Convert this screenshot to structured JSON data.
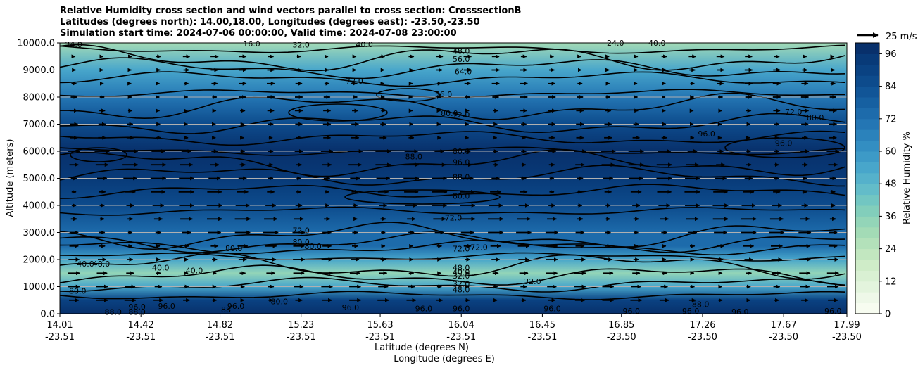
{
  "chart_data": {
    "type": "heatmap",
    "title": [
      "Relative Humidity cross section and wind vectors parallel to cross section: CrosssectionB",
      "Latitudes (degrees north): 14.00,18.00, Longitudes (degrees east): -23.50,-23.50",
      "Simulation start time: 2024-07-06 00:00:00, Valid time: 2024-07-08 23:00:00"
    ],
    "xlabel": [
      "Latitude (degrees N)",
      "Longitude (degrees E)"
    ],
    "ylabel": "Altitude (meters)",
    "x_ticks": [
      {
        "lat": "14.01",
        "lon": "-23.51"
      },
      {
        "lat": "14.42",
        "lon": "-23.51"
      },
      {
        "lat": "14.82",
        "lon": "-23.51"
      },
      {
        "lat": "15.23",
        "lon": "-23.51"
      },
      {
        "lat": "15.63",
        "lon": "-23.51"
      },
      {
        "lat": "16.04",
        "lon": "-23.51"
      },
      {
        "lat": "16.45",
        "lon": "-23.51"
      },
      {
        "lat": "16.85",
        "lon": "-23.50"
      },
      {
        "lat": "17.26",
        "lon": "-23.50"
      },
      {
        "lat": "17.67",
        "lon": "-23.50"
      },
      {
        "lat": "17.99",
        "lon": "-23.50"
      }
    ],
    "x_range": [
      14.01,
      17.99
    ],
    "y_ticks": [
      "0.0",
      "1000.0",
      "2000.0",
      "3000.0",
      "4000.0",
      "5000.0",
      "6000.0",
      "7000.0",
      "8000.0",
      "9000.0",
      "10000.0"
    ],
    "y_range": [
      0,
      10000
    ],
    "grid": "horizontal",
    "colorbar": {
      "label": "Relative Humidity %",
      "ticks": [
        "0",
        "12",
        "24",
        "36",
        "48",
        "60",
        "72",
        "84",
        "96"
      ],
      "levels": [
        0,
        4,
        8,
        12,
        16,
        20,
        24,
        28,
        32,
        36,
        40,
        44,
        48,
        52,
        56,
        60,
        64,
        68,
        72,
        76,
        80,
        84,
        88,
        92,
        96,
        100
      ],
      "colors": [
        "#f7fcf0",
        "#eef8e8",
        "#e3f4dd",
        "#d9f0d3",
        "#cfecc8",
        "#c2e7c0",
        "#b3e1ba",
        "#a3dbb6",
        "#93d5b8",
        "#82cebb",
        "#72c6c2",
        "#63bcc9",
        "#55b1cb",
        "#48a6cb",
        "#3d9ac7",
        "#338ec2",
        "#2b82bb",
        "#2476b4",
        "#1d6bab",
        "#1660a1",
        "#115597",
        "#0d4b8c",
        "#0a4282",
        "#083a78",
        "#08306b"
      ]
    },
    "rh_profile": [
      {
        "alt": 0,
        "rh": 96
      },
      {
        "alt": 500,
        "rh": 90
      },
      {
        "alt": 1000,
        "rh": 55
      },
      {
        "alt": 1500,
        "rh": 35
      },
      {
        "alt": 2000,
        "rh": 55
      },
      {
        "alt": 2500,
        "rh": 75
      },
      {
        "alt": 3000,
        "rh": 72
      },
      {
        "alt": 4000,
        "rh": 84
      },
      {
        "alt": 5000,
        "rh": 92
      },
      {
        "alt": 6000,
        "rh": 96
      },
      {
        "alt": 7000,
        "rh": 85
      },
      {
        "alt": 8000,
        "rh": 70
      },
      {
        "alt": 9000,
        "rh": 55
      },
      {
        "alt": 10000,
        "rh": 30
      }
    ],
    "wind_key": {
      "value": 25,
      "unit": "m/s",
      "label": "25 m/s"
    },
    "contour_labels": [
      {
        "text": "24.0",
        "lat": 14.08,
        "alt": 9950
      },
      {
        "text": "16.0",
        "lat": 14.98,
        "alt": 9970
      },
      {
        "text": "32.0",
        "lat": 15.23,
        "alt": 9930
      },
      {
        "text": "40.0",
        "lat": 15.55,
        "alt": 9950
      },
      {
        "text": "48.0",
        "lat": 16.04,
        "alt": 9700
      },
      {
        "text": "56.0",
        "lat": 16.04,
        "alt": 9400
      },
      {
        "text": "40.0",
        "lat": 17.03,
        "alt": 10000
      },
      {
        "text": "24.0",
        "lat": 16.82,
        "alt": 10000
      },
      {
        "text": "72.0",
        "lat": 15.5,
        "alt": 8600
      },
      {
        "text": "64.0",
        "lat": 16.05,
        "alt": 8950
      },
      {
        "text": "56.0",
        "lat": 15.95,
        "alt": 8100
      },
      {
        "text": "72.0",
        "lat": 16.04,
        "alt": 7350
      },
      {
        "text": "80.0",
        "lat": 15.98,
        "alt": 7400
      },
      {
        "text": "72.0",
        "lat": 17.72,
        "alt": 7450
      },
      {
        "text": "80.0",
        "lat": 17.83,
        "alt": 7250
      },
      {
        "text": "96.0",
        "lat": 17.28,
        "alt": 6650
      },
      {
        "text": "96.0",
        "lat": 17.67,
        "alt": 6300
      },
      {
        "text": "88.0",
        "lat": 15.8,
        "alt": 5800
      },
      {
        "text": "80.0",
        "lat": 16.04,
        "alt": 6000
      },
      {
        "text": "96.0",
        "lat": 16.04,
        "alt": 5600
      },
      {
        "text": "88.0",
        "lat": 16.04,
        "alt": 5050
      },
      {
        "text": "80.0",
        "lat": 16.04,
        "alt": 4350
      },
      {
        "text": "72.0",
        "lat": 16.0,
        "alt": 3550
      },
      {
        "text": "72.0",
        "lat": 15.23,
        "alt": 3080
      },
      {
        "text": "80.0",
        "lat": 15.23,
        "alt": 2650
      },
      {
        "text": "80.0",
        "lat": 15.29,
        "alt": 2500
      },
      {
        "text": "80.0",
        "lat": 14.89,
        "alt": 2420
      },
      {
        "text": "72.0",
        "lat": 16.04,
        "alt": 2400
      },
      {
        "text": "72.0",
        "lat": 16.13,
        "alt": 2450
      },
      {
        "text": "40.0",
        "lat": 14.14,
        "alt": 1850
      },
      {
        "text": "48.0",
        "lat": 14.22,
        "alt": 1850
      },
      {
        "text": "40.0",
        "lat": 14.52,
        "alt": 1700
      },
      {
        "text": "40.0",
        "lat": 14.69,
        "alt": 1600
      },
      {
        "text": "48.0",
        "lat": 16.04,
        "alt": 1700
      },
      {
        "text": "40.0",
        "lat": 16.04,
        "alt": 1550
      },
      {
        "text": "32.0",
        "lat": 16.04,
        "alt": 1400
      },
      {
        "text": "32.0",
        "lat": 16.4,
        "alt": 1200
      },
      {
        "text": "32.0",
        "lat": 16.04,
        "alt": 1100
      },
      {
        "text": "48.0",
        "lat": 16.04,
        "alt": 900
      },
      {
        "text": "80.0",
        "lat": 14.1,
        "alt": 850
      },
      {
        "text": "80.0",
        "lat": 15.12,
        "alt": 450
      },
      {
        "text": "88.0",
        "lat": 14.28,
        "alt": 60
      },
      {
        "text": "88.0",
        "lat": 14.4,
        "alt": 60
      },
      {
        "text": "96.0",
        "lat": 14.4,
        "alt": 260
      },
      {
        "text": "96.0",
        "lat": 14.55,
        "alt": 280
      },
      {
        "text": "96.0",
        "lat": 14.9,
        "alt": 280
      },
      {
        "text": "96.0",
        "lat": 15.48,
        "alt": 230
      },
      {
        "text": "96.0",
        "lat": 15.85,
        "alt": 200
      },
      {
        "text": "96.0",
        "lat": 16.04,
        "alt": 200
      },
      {
        "text": "96.0",
        "lat": 16.5,
        "alt": 200
      },
      {
        "text": "96.0",
        "lat": 16.9,
        "alt": 100
      },
      {
        "text": "96.0",
        "lat": 17.2,
        "alt": 100
      },
      {
        "text": "88.0",
        "lat": 17.25,
        "alt": 350
      },
      {
        "text": "96.0",
        "lat": 17.45,
        "alt": 80
      },
      {
        "text": "96.0",
        "lat": 17.92,
        "alt": 100
      },
      {
        "text": "88",
        "lat": 14.85,
        "alt": 150
      }
    ]
  }
}
